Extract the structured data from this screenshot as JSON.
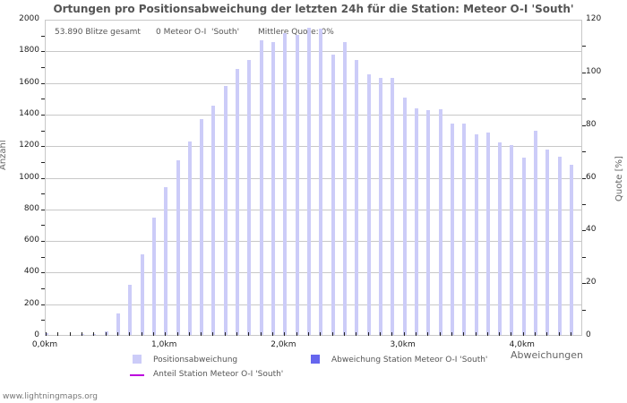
{
  "chart_data": {
    "type": "bar",
    "title": "Ortungen pro Positionsabweichung der letzten 24h für die Station: Meteor O-I  'South'",
    "xlabel": "Abweichungen",
    "ylabel": "Anzahl",
    "ylabel_right": "Quote [%]",
    "ylim": [
      0,
      2000
    ],
    "ylim_right": [
      0,
      120
    ],
    "yticks": [
      0,
      200,
      400,
      600,
      800,
      1000,
      1200,
      1400,
      1600,
      1800,
      2000
    ],
    "yticks_right": [
      0,
      20,
      40,
      60,
      80,
      100,
      120
    ],
    "xticks": [
      "0,0km",
      "1,0km",
      "2,0km",
      "3,0km",
      "4,0km"
    ],
    "bin_width_km": 0.1,
    "categories": [
      "0.0",
      "0.1",
      "0.2",
      "0.3",
      "0.4",
      "0.5",
      "0.6",
      "0.7",
      "0.8",
      "0.9",
      "1.0",
      "1.1",
      "1.2",
      "1.3",
      "1.4",
      "1.5",
      "1.6",
      "1.7",
      "1.8",
      "1.9",
      "2.0",
      "2.1",
      "2.2",
      "2.3",
      "2.4",
      "2.5",
      "2.6",
      "2.7",
      "2.8",
      "2.9",
      "3.0",
      "3.1",
      "3.2",
      "3.3",
      "3.4",
      "3.5",
      "3.6",
      "3.7",
      "3.8",
      "3.9",
      "4.0",
      "4.1",
      "4.2",
      "4.3",
      "4.4"
    ],
    "series": [
      {
        "name": "Positionsabweichung",
        "color": "#ccccf8",
        "values": [
          10,
          0,
          0,
          3,
          3,
          25,
          136,
          317,
          510,
          742,
          935,
          1105,
          1224,
          1365,
          1450,
          1575,
          1683,
          1740,
          1865,
          1855,
          1910,
          1900,
          1945,
          1935,
          1775,
          1850,
          1740,
          1650,
          1627,
          1627,
          1502,
          1435,
          1422,
          1428,
          1340,
          1340,
          1270,
          1280,
          1220,
          1200,
          1120,
          1290,
          1172,
          1127,
          1075
        ]
      },
      {
        "name": "Abweichung Station Meteor O-I  'South'",
        "color": "#6666ee",
        "values": [
          0,
          0,
          0,
          0,
          0,
          0,
          0,
          0,
          0,
          0,
          0,
          0,
          0,
          0,
          0,
          0,
          0,
          0,
          0,
          0,
          0,
          0,
          0,
          0,
          0,
          0,
          0,
          0,
          0,
          0,
          0,
          0,
          0,
          0,
          0,
          0,
          0,
          0,
          0,
          0,
          0,
          0,
          0,
          0,
          0
        ]
      },
      {
        "name": "Anteil Station Meteor O-I  'South'",
        "color": "#bb00dd",
        "type": "line",
        "axis": "right",
        "values": []
      }
    ],
    "grid": true,
    "legend_position": "bottom"
  },
  "info": {
    "total": "53.890 Blitze gesamt",
    "station_count": "0 Meteor O-I  'South'",
    "mean_quote": "Mittlere Quote: 0%"
  },
  "legend": {
    "positions": "Positionsabweichung",
    "station_dev": "Abweichung Station Meteor O-I  'South'",
    "station_share": "Anteil Station Meteor O-I  'South'"
  },
  "footer": "www.lightningmaps.org"
}
